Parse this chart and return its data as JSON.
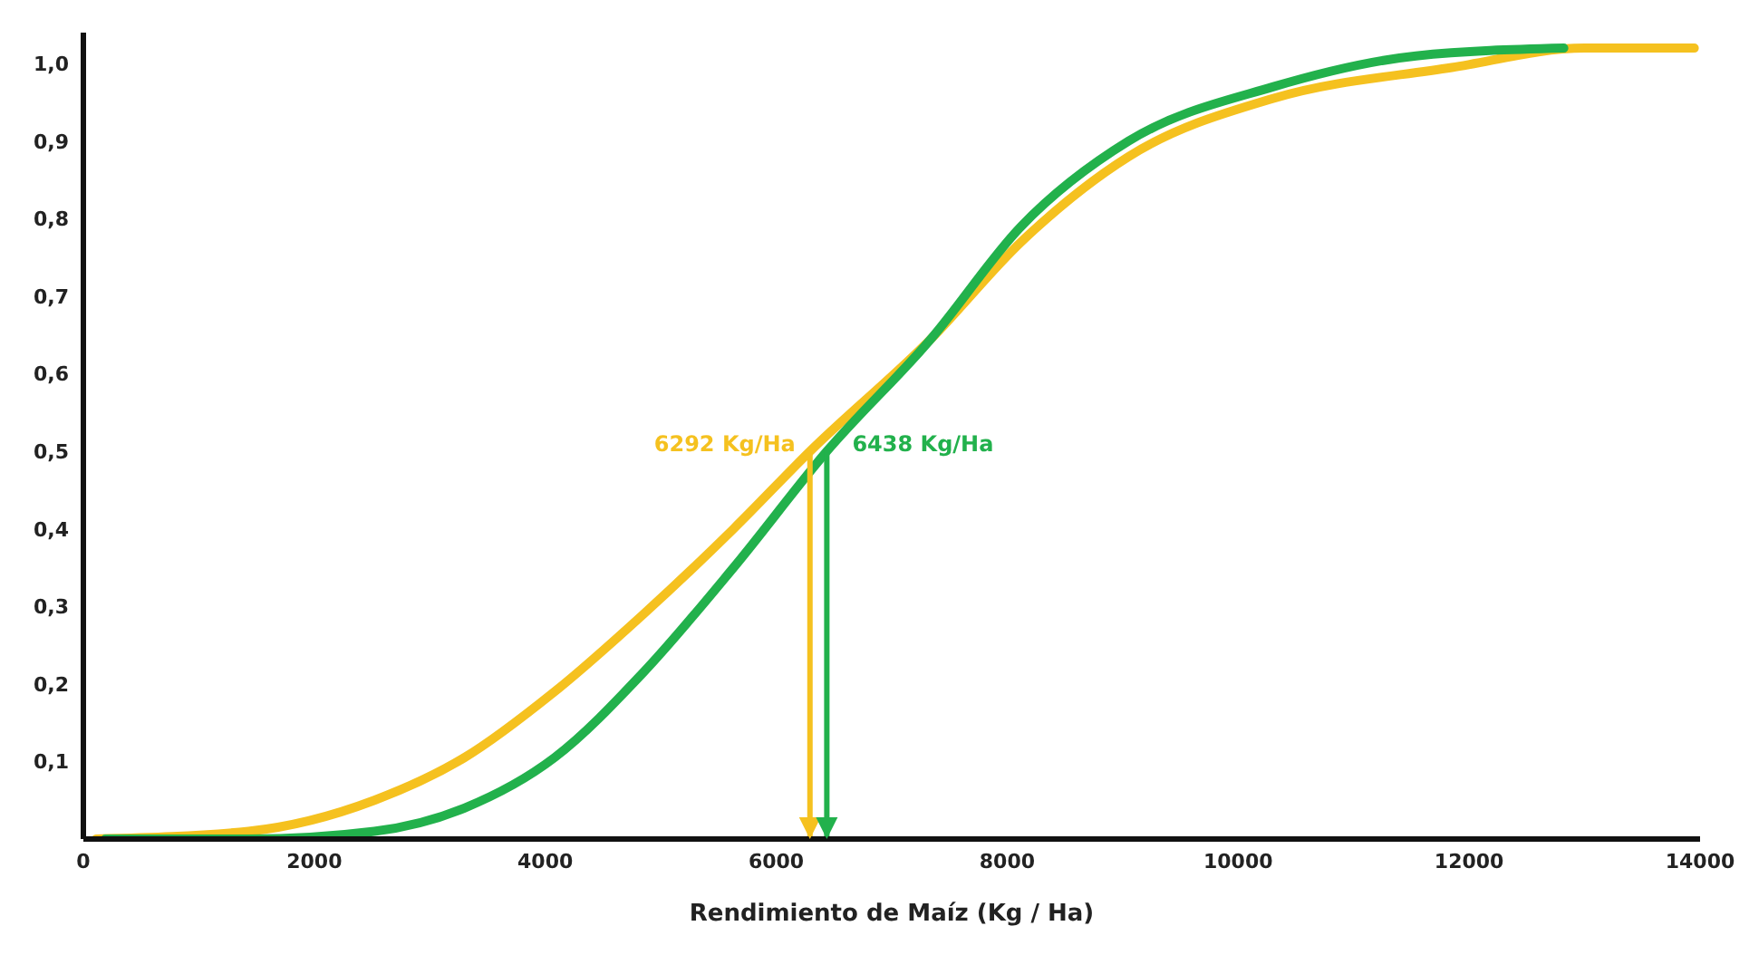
{
  "chart_data": {
    "type": "line",
    "xlabel": "Rendimiento de Maíz (Kg / Ha)",
    "xlim": [
      0,
      14000
    ],
    "xticks": [
      0,
      2000,
      4000,
      6000,
      8000,
      10000,
      12000,
      14000
    ],
    "ylim": [
      0,
      1.04
    ],
    "yticks": [
      {
        "value": 0.1,
        "label": "0,1"
      },
      {
        "value": 0.2,
        "label": "0,2"
      },
      {
        "value": 0.3,
        "label": "0,3"
      },
      {
        "value": 0.4,
        "label": "0,4"
      },
      {
        "value": 0.5,
        "label": "0,5"
      },
      {
        "value": 0.6,
        "label": "0,6"
      },
      {
        "value": 0.7,
        "label": "0,7"
      },
      {
        "value": 0.8,
        "label": "0,8"
      },
      {
        "value": 0.9,
        "label": "0,9"
      },
      {
        "value": 1.0,
        "label": "1,0"
      }
    ],
    "marker": "none",
    "line_style": "solid",
    "series": [
      {
        "color": "#f5c11f",
        "x": [
          110,
          1430,
          2520,
          3300,
          4080,
          4850,
          5630,
          6292,
          7340,
          8120,
          9050,
          10300,
          11850,
          13000,
          13950
        ],
        "values": [
          0,
          0.01,
          0.05,
          0.105,
          0.19,
          0.29,
          0.4,
          0.5,
          0.645,
          0.77,
          0.88,
          0.955,
          0.995,
          1.02,
          1.02
        ]
      },
      {
        "color": "#22b14c",
        "x": [
          190,
          1430,
          2520,
          3300,
          4080,
          4850,
          5630,
          6438,
          7340,
          8120,
          9050,
          10300,
          11540,
          12820
        ],
        "values": [
          0,
          0,
          0.01,
          0.04,
          0.105,
          0.215,
          0.35,
          0.5,
          0.645,
          0.79,
          0.9,
          0.97,
          1.01,
          1.02
        ]
      }
    ],
    "annotations": [
      {
        "text": "6292 Kg/Ha",
        "x": 6292,
        "y": 0.5
      },
      {
        "text": "6438 Kg/Ha",
        "x": 6438,
        "y": 0.5
      }
    ]
  }
}
